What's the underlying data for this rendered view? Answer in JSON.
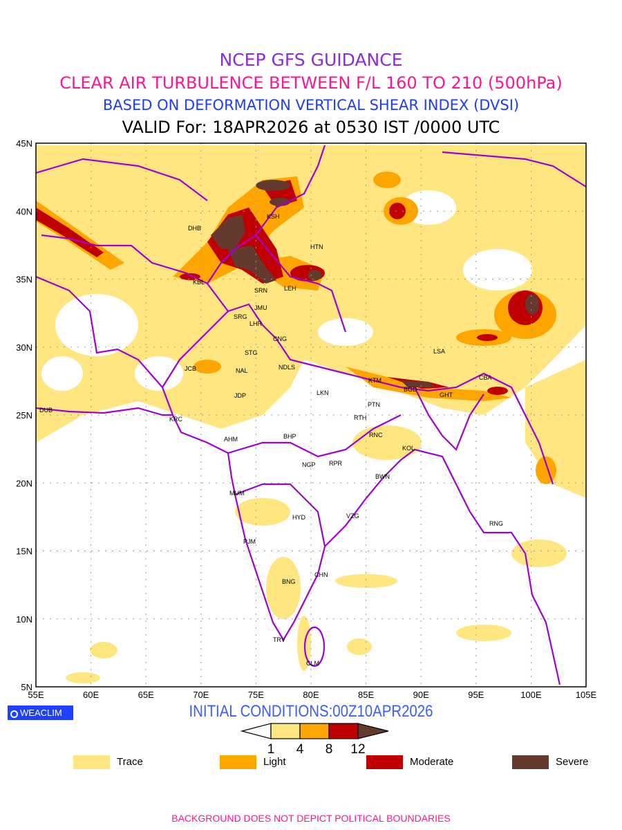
{
  "header": {
    "title": "NCEP GFS GUIDANCE",
    "subtitle": "CLEAR AIR TURBULENCE BETWEEN F/L 160 TO 210 (500hPa)",
    "method": "BASED ON DEFORMATION VERTICAL SHEAR INDEX (DVSI)",
    "valid": "VALID For: 18APR2026 at 0530 IST /0000 UTC"
  },
  "axes": {
    "lon_ticks": [
      "55E",
      "60E",
      "65E",
      "70E",
      "75E",
      "80E",
      "85E",
      "90E",
      "95E",
      "100E",
      "105E"
    ],
    "lat_ticks": [
      "45N",
      "40N",
      "35N",
      "30N",
      "25N",
      "20N",
      "15N",
      "10N",
      "5N"
    ]
  },
  "stations": [
    "DHB",
    "KSH",
    "HTN",
    "KBL",
    "SRN",
    "LEH",
    "JMU",
    "SRG",
    "LHR",
    "CNG",
    "STG",
    "NDLS",
    "JCB",
    "NAL",
    "JDP",
    "LKN",
    "KTM",
    "BGD",
    "GHT",
    "LSA",
    "CBA",
    "DUB",
    "KRC",
    "AHM",
    "BHP",
    "PTN",
    "RTH",
    "RNC",
    "KOL",
    "NGP",
    "RPR",
    "BWN",
    "MUM",
    "HYD",
    "VZG",
    "RNG",
    "PJM",
    "CHN",
    "BNG",
    "TRV",
    "CLM"
  ],
  "logo": "WEACLIM",
  "initial_conditions": "INITIAL CONDITIONS:00Z10APR2026",
  "colorbar": {
    "ticks": [
      "1",
      "4",
      "8",
      "12"
    ]
  },
  "legend": [
    {
      "label": "Trace",
      "color": "#ffe680"
    },
    {
      "label": "Light",
      "color": "#ffa500"
    },
    {
      "label": "Moderate",
      "color": "#c00000"
    },
    {
      "label": "Severe",
      "color": "#653a2e"
    }
  ],
  "colors": {
    "boundary": "#a000d0",
    "grid": "#999999"
  },
  "footer": "BACKGROUND DOES NOT DEPICT POLITICAL BOUNDARIES"
}
